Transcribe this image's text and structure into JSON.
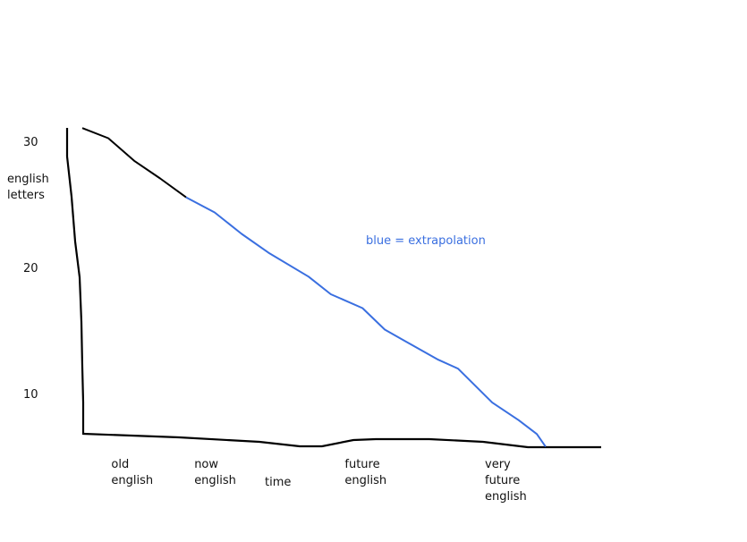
{
  "chart_data": {
    "type": "line",
    "y_label": "english letters",
    "x_label": "time",
    "annotation": "blue = extrapolation",
    "annotation_color": "#3a6fe0",
    "ylim": [
      5.5,
      31.5
    ],
    "yticks": [
      10,
      20,
      30
    ],
    "xlim": [
      0,
      100
    ],
    "xticks": [
      {
        "value": 3,
        "label": "old english"
      },
      {
        "value": 19,
        "label": "now english"
      },
      {
        "value": 48,
        "label": "future english"
      },
      {
        "value": 75,
        "label": "very future english"
      }
    ],
    "series": [
      {
        "color": "#000000",
        "x": [
          0,
          5,
          10,
          15,
          20
        ],
        "values": [
          31.2,
          30.4,
          28.6,
          27.2,
          25.7
        ]
      },
      {
        "color": "#3a6fe0",
        "x": [
          20,
          25.5,
          30.7,
          35.9,
          43.6,
          47.9,
          54,
          58.3,
          63.4,
          68.6,
          72.4,
          79,
          84.1,
          87.6,
          89.3
        ],
        "values": [
          25.7,
          24.5,
          22.8,
          21.3,
          19.4,
          18.0,
          16.9,
          15.2,
          14.0,
          12.8,
          12.1,
          9.4,
          8.0,
          6.9,
          5.9
        ]
      }
    ]
  }
}
